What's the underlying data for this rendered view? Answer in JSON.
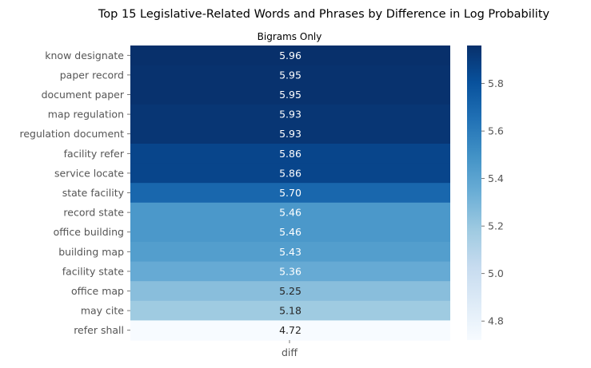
{
  "chart_data": {
    "type": "heatmap",
    "title": "Top 15 Legislative-Related Words and Phrases by Difference in Log Probability",
    "subtitle": "Bigrams Only",
    "xlabel": "diff",
    "columns": [
      "diff"
    ],
    "rows": [
      "know designate",
      "paper record",
      "document paper",
      "map regulation",
      "regulation document",
      "facility refer",
      "service locate",
      "state facility",
      "record state",
      "office building",
      "building map",
      "facility state",
      "office map",
      "may cite",
      "refer shall"
    ],
    "values": [
      5.96,
      5.95,
      5.95,
      5.93,
      5.93,
      5.86,
      5.86,
      5.7,
      5.46,
      5.46,
      5.43,
      5.36,
      5.25,
      5.18,
      4.72
    ],
    "value_labels": [
      "5.96",
      "5.95",
      "5.95",
      "5.93",
      "5.93",
      "5.86",
      "5.86",
      "5.70",
      "5.46",
      "5.46",
      "5.43",
      "5.36",
      "5.25",
      "5.18",
      "4.72"
    ],
    "colormap": "Blues",
    "colorbar": {
      "range": [
        4.72,
        5.96
      ],
      "ticks": [
        "4.8",
        "5.0",
        "5.2",
        "5.4",
        "5.6",
        "5.8"
      ]
    }
  }
}
